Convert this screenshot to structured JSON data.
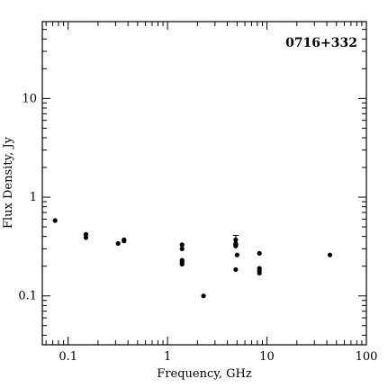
{
  "chart_data": {
    "type": "scatter",
    "title": "0716+332",
    "xlabel": "Frequency, GHz",
    "ylabel": "Flux Density, Jy",
    "xscale": "log",
    "yscale": "log",
    "xlim": [
      0.055,
      100
    ],
    "ylim": [
      0.032,
      60
    ],
    "grid": false,
    "title_position": "top-right",
    "x_ticks": [
      {
        "value": 0.1,
        "label": "0.1"
      },
      {
        "value": 1,
        "label": "1"
      },
      {
        "value": 10,
        "label": "10"
      },
      {
        "value": 100,
        "label": "100"
      }
    ],
    "y_ticks": [
      {
        "value": 0.1,
        "label": "0.1"
      },
      {
        "value": 1,
        "label": "1"
      },
      {
        "value": 10,
        "label": "10"
      }
    ],
    "points": [
      {
        "x": 0.074,
        "y": 0.58
      },
      {
        "x": 0.151,
        "y": 0.42
      },
      {
        "x": 0.151,
        "y": 0.39
      },
      {
        "x": 0.318,
        "y": 0.34
      },
      {
        "x": 0.365,
        "y": 0.36
      },
      {
        "x": 0.365,
        "y": 0.37
      },
      {
        "x": 1.4,
        "y": 0.33
      },
      {
        "x": 1.4,
        "y": 0.3
      },
      {
        "x": 1.4,
        "y": 0.23
      },
      {
        "x": 1.4,
        "y": 0.22
      },
      {
        "x": 1.4,
        "y": 0.21
      },
      {
        "x": 2.3,
        "y": 0.1
      },
      {
        "x": 4.85,
        "y": 0.37,
        "err": 0.04
      },
      {
        "x": 4.85,
        "y": 0.34
      },
      {
        "x": 4.85,
        "y": 0.32
      },
      {
        "x": 4.85,
        "y": 0.185
      },
      {
        "x": 5.0,
        "y": 0.26
      },
      {
        "x": 8.4,
        "y": 0.27
      },
      {
        "x": 8.4,
        "y": 0.19
      },
      {
        "x": 8.4,
        "y": 0.18
      },
      {
        "x": 8.4,
        "y": 0.17
      },
      {
        "x": 43,
        "y": 0.26
      }
    ]
  }
}
